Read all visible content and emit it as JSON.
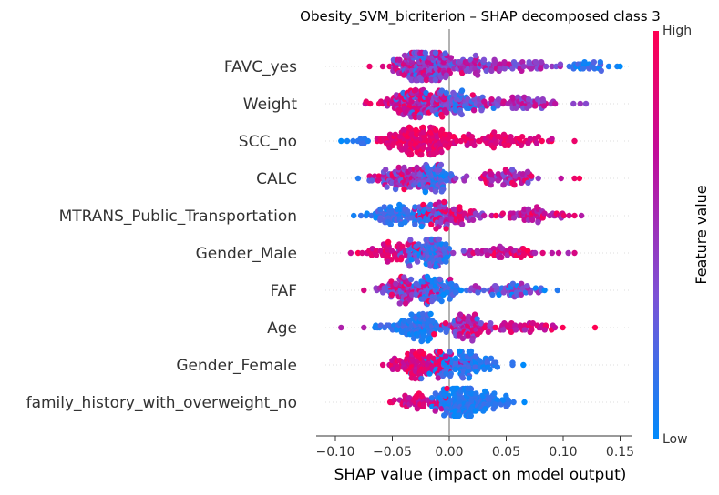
{
  "chart_data": {
    "type": "scatter",
    "subtype": "shap-beeswarm",
    "title": "Obesity_SVM_bicriterion – SHAP decomposed class 3",
    "xlabel": "SHAP value (impact on model output)",
    "xlim": [
      -0.11,
      0.16
    ],
    "xticks": [
      "−0.10",
      "−0.05",
      "0.00",
      "0.05",
      "0.10",
      "0.15"
    ],
    "xtick_values": [
      -0.1,
      -0.05,
      0.0,
      0.05,
      0.1,
      0.15
    ],
    "grid": false,
    "colorbar": {
      "label": "Feature value",
      "high_label": "High",
      "low_label": "Low",
      "colors": [
        "#008afb",
        "#7c52d6",
        "#c20c9a",
        "#ff0052"
      ]
    },
    "features": [
      {
        "name": "FAVC_yes",
        "clusters": [
          {
            "center": -0.025,
            "spread": 0.025,
            "n": 170,
            "low": 0.1,
            "high": 0.9
          },
          {
            "center": 0.015,
            "spread": 0.04,
            "n": 90,
            "low": 0.2,
            "high": 0.8
          },
          {
            "center": 0.07,
            "spread": 0.03,
            "n": 40,
            "low": 0.3,
            "high": 0.7
          },
          {
            "center": 0.125,
            "spread": 0.02,
            "n": 25,
            "low": 0.0,
            "high": 0.25
          }
        ],
        "extremes": [
          {
            "x": -0.07,
            "v": 0.9
          },
          {
            "x": 0.15,
            "v": 0.0
          },
          {
            "x": 0.14,
            "v": 0.05
          }
        ]
      },
      {
        "name": "Weight",
        "clusters": [
          {
            "center": -0.03,
            "spread": 0.03,
            "n": 120,
            "low": 0.5,
            "high": 1.0
          },
          {
            "center": 0.0,
            "spread": 0.035,
            "n": 110,
            "low": 0.05,
            "high": 0.5
          },
          {
            "center": 0.06,
            "spread": 0.035,
            "n": 60,
            "low": 0.3,
            "high": 0.8
          }
        ],
        "extremes": [
          {
            "x": -0.073,
            "v": 0.9
          },
          {
            "x": 0.12,
            "v": 0.4
          },
          {
            "x": 0.115,
            "v": 0.5
          }
        ]
      },
      {
        "name": "SCC_no",
        "clusters": [
          {
            "center": -0.03,
            "spread": 0.03,
            "n": 170,
            "low": 0.75,
            "high": 1.0
          },
          {
            "center": 0.04,
            "spread": 0.04,
            "n": 80,
            "low": 0.7,
            "high": 1.0
          },
          {
            "center": -0.08,
            "spread": 0.012,
            "n": 10,
            "low": 0.0,
            "high": 0.2
          }
        ],
        "extremes": [
          {
            "x": -0.095,
            "v": 0.0
          },
          {
            "x": 0.11,
            "v": 0.9
          }
        ]
      },
      {
        "name": "CALC",
        "clusters": [
          {
            "center": -0.04,
            "spread": 0.025,
            "n": 90,
            "low": 0.2,
            "high": 1.0
          },
          {
            "center": -0.015,
            "spread": 0.02,
            "n": 80,
            "low": 0.0,
            "high": 0.5
          },
          {
            "center": 0.05,
            "spread": 0.035,
            "n": 70,
            "low": 0.3,
            "high": 1.0
          }
        ],
        "extremes": [
          {
            "x": -0.08,
            "v": 0.1
          },
          {
            "x": 0.11,
            "v": 0.9
          }
        ]
      },
      {
        "name": "MTRANS_Public_Transportation",
        "clusters": [
          {
            "center": -0.04,
            "spread": 0.03,
            "n": 100,
            "low": 0.0,
            "high": 0.3
          },
          {
            "center": 0.0,
            "spread": 0.025,
            "n": 90,
            "low": 0.3,
            "high": 1.0
          },
          {
            "center": 0.07,
            "spread": 0.03,
            "n": 55,
            "low": 0.5,
            "high": 1.0
          }
        ],
        "extremes": [
          {
            "x": -0.073,
            "v": 0.1
          },
          {
            "x": 0.11,
            "v": 0.9
          }
        ]
      },
      {
        "name": "Gender_Male",
        "clusters": [
          {
            "center": -0.05,
            "spread": 0.02,
            "n": 60,
            "low": 0.7,
            "high": 1.0
          },
          {
            "center": -0.015,
            "spread": 0.02,
            "n": 110,
            "low": 0.0,
            "high": 0.5
          },
          {
            "center": 0.05,
            "spread": 0.035,
            "n": 60,
            "low": 0.5,
            "high": 1.0
          }
        ],
        "extremes": [
          {
            "x": -0.08,
            "v": 1.0
          },
          {
            "x": 0.11,
            "v": 0.8
          }
        ]
      },
      {
        "name": "FAF",
        "clusters": [
          {
            "center": -0.04,
            "spread": 0.025,
            "n": 90,
            "low": 0.2,
            "high": 1.0
          },
          {
            "center": -0.01,
            "spread": 0.02,
            "n": 80,
            "low": 0.0,
            "high": 0.3
          },
          {
            "center": 0.05,
            "spread": 0.03,
            "n": 60,
            "low": 0.0,
            "high": 0.6
          }
        ],
        "extremes": [
          {
            "x": -0.075,
            "v": 0.8
          },
          {
            "x": 0.095,
            "v": 0.1
          }
        ]
      },
      {
        "name": "Age",
        "clusters": [
          {
            "center": -0.03,
            "spread": 0.03,
            "n": 110,
            "low": 0.0,
            "high": 0.25
          },
          {
            "center": 0.015,
            "spread": 0.02,
            "n": 80,
            "low": 0.3,
            "high": 1.0
          },
          {
            "center": 0.06,
            "spread": 0.03,
            "n": 50,
            "low": 0.5,
            "high": 1.0
          }
        ],
        "extremes": [
          {
            "x": -0.095,
            "v": 0.6
          },
          {
            "x": 0.128,
            "v": 1.0
          },
          {
            "x": -0.075,
            "v": 0.6
          }
        ]
      },
      {
        "name": "Gender_Female",
        "clusters": [
          {
            "center": -0.025,
            "spread": 0.025,
            "n": 120,
            "low": 0.65,
            "high": 1.0
          },
          {
            "center": 0.015,
            "spread": 0.03,
            "n": 110,
            "low": 0.0,
            "high": 0.25
          }
        ],
        "extremes": [
          {
            "x": -0.05,
            "v": 1.0
          },
          {
            "x": 0.065,
            "v": 0.0
          }
        ]
      },
      {
        "name": "family_history_with_overweight_no",
        "clusters": [
          {
            "center": -0.025,
            "spread": 0.018,
            "n": 50,
            "low": 0.6,
            "high": 1.0
          },
          {
            "center": 0.01,
            "spread": 0.02,
            "n": 150,
            "low": 0.0,
            "high": 0.2
          },
          {
            "center": 0.04,
            "spread": 0.02,
            "n": 30,
            "low": 0.0,
            "high": 0.2
          }
        ],
        "extremes": [
          {
            "x": -0.05,
            "v": 0.9
          },
          {
            "x": 0.066,
            "v": 0.0
          }
        ]
      }
    ]
  }
}
